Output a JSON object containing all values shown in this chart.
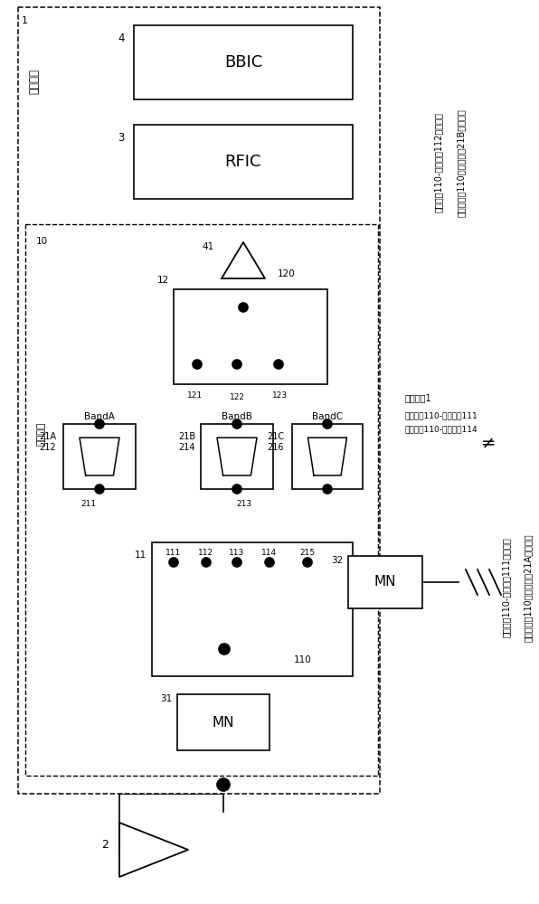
{
  "bg": "#ffffff",
  "fig_w": 5.96,
  "fig_h": 10.0,
  "labels_right_top": [
    "共用端子110-选择端子112连接时的",
    "从共用端子110观察滤波器21B侧的阻抗"
  ],
  "labels_right_bot": [
    "共用端子110-选择端子111连接时的",
    "从共用端子110观察滤波器21A侧的阻抗"
  ],
  "hash": "≠",
  "label_conn": "连接状态1",
  "label_111": "共用端子110-选择端子111",
  "label_114": "共用端子110-选择端子114"
}
